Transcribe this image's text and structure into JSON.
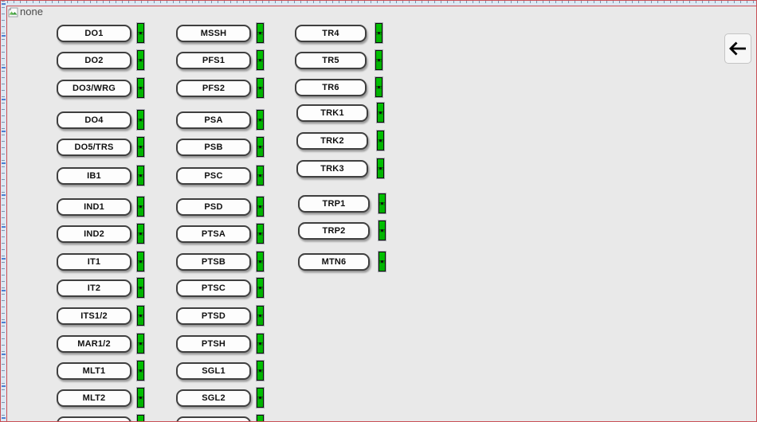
{
  "window": {
    "placeholder_label": "none",
    "placeholder_icon": "broken-image-icon"
  },
  "toolbar": {
    "back_icon": "left-arrow-icon"
  },
  "colors": {
    "canvas_bg": "#e9e9e9",
    "selection_border": "#c94f56",
    "indicator_green": "#00c300"
  },
  "columns": [
    {
      "name": "column-1",
      "buttons": [
        {
          "label": "DO1",
          "indicator": "green"
        },
        {
          "label": "DO2",
          "indicator": "green"
        },
        {
          "label": "DO3/WRG",
          "indicator": "green"
        },
        {
          "label": "DO4",
          "indicator": "green"
        },
        {
          "label": "DO5/TRS",
          "indicator": "green"
        },
        {
          "label": "IB1",
          "indicator": "green"
        },
        {
          "label": "IND1",
          "indicator": "green"
        },
        {
          "label": "IND2",
          "indicator": "green"
        },
        {
          "label": "IT1",
          "indicator": "green"
        },
        {
          "label": "IT2",
          "indicator": "green"
        },
        {
          "label": "ITS1/2",
          "indicator": "green"
        },
        {
          "label": "MAR1/2",
          "indicator": "green"
        },
        {
          "label": "MLT1",
          "indicator": "green"
        },
        {
          "label": "MLT2",
          "indicator": "green"
        },
        {
          "label": "",
          "indicator": "green"
        }
      ]
    },
    {
      "name": "column-2",
      "buttons": [
        {
          "label": "MSSH",
          "indicator": "green"
        },
        {
          "label": "PFS1",
          "indicator": "green"
        },
        {
          "label": "PFS2",
          "indicator": "green"
        },
        {
          "label": "PSA",
          "indicator": "green"
        },
        {
          "label": "PSB",
          "indicator": "green"
        },
        {
          "label": "PSC",
          "indicator": "green"
        },
        {
          "label": "PSD",
          "indicator": "green"
        },
        {
          "label": "PTSA",
          "indicator": "green"
        },
        {
          "label": "PTSB",
          "indicator": "green"
        },
        {
          "label": "PTSC",
          "indicator": "green"
        },
        {
          "label": "PTSD",
          "indicator": "green"
        },
        {
          "label": "PTSH",
          "indicator": "green"
        },
        {
          "label": "SGL1",
          "indicator": "green"
        },
        {
          "label": "SGL2",
          "indicator": "green"
        },
        {
          "label": "",
          "indicator": "green"
        }
      ]
    },
    {
      "name": "column-3",
      "buttons": [
        {
          "label": "TR4",
          "indicator": "green"
        },
        {
          "label": "TR5",
          "indicator": "green"
        },
        {
          "label": "TR6",
          "indicator": "green"
        },
        {
          "label": "TRK1",
          "indicator": "green"
        },
        {
          "label": "TRK2",
          "indicator": "green"
        },
        {
          "label": "TRK3",
          "indicator": "green"
        },
        {
          "label": "TRP1",
          "indicator": "green"
        },
        {
          "label": "TRP2",
          "indicator": "green"
        },
        {
          "label": "MTN6",
          "indicator": "green"
        }
      ]
    }
  ]
}
